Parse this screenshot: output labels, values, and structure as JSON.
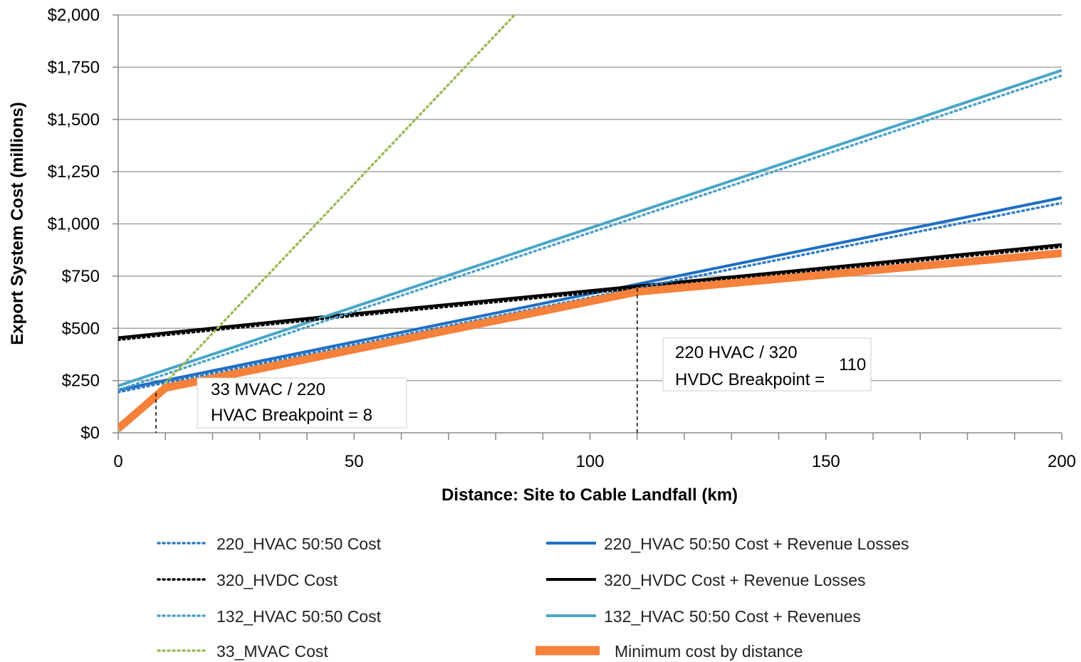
{
  "chart_data": {
    "type": "line",
    "title": "",
    "xlabel": "Distance: Site to Cable Landfall (km)",
    "ylabel": "Export System Cost (millions)",
    "xlim": [
      0,
      200
    ],
    "ylim": [
      0,
      2000
    ],
    "x_ticks": [
      "0",
      "50",
      "100",
      "150",
      "200"
    ],
    "y_ticks": [
      "$0",
      "$250",
      "$500",
      "$750",
      "$1,000",
      "$1,250",
      "$1,500",
      "$1,750",
      "$2,000"
    ],
    "grid": "horizontal",
    "legend_position": "bottom",
    "series": [
      {
        "name": "220_HVAC 50:50 Cost",
        "style": "dotted",
        "color": "#2e7cc4",
        "x": [
          0,
          200
        ],
        "y": [
          195,
          1100
        ]
      },
      {
        "name": "320_HVDC Cost",
        "style": "dotted",
        "color": "#000000",
        "x": [
          0,
          50,
          100,
          150,
          200
        ],
        "y": [
          445,
          560,
          670,
          780,
          890
        ]
      },
      {
        "name": "132_HVAC 50:50 Cost",
        "style": "dotted",
        "color": "#4aa1c8",
        "x": [
          0,
          200
        ],
        "y": [
          205,
          1710
        ]
      },
      {
        "name": "33_MVAC Cost",
        "style": "dotted",
        "color": "#9bbb59",
        "x": [
          0,
          84
        ],
        "y": [
          0,
          2000
        ]
      },
      {
        "name": "220_HVAC 50:50 Cost + Revenue Losses",
        "style": "solid",
        "color": "#1f6fc4",
        "x": [
          0,
          200
        ],
        "y": [
          205,
          1125
        ]
      },
      {
        "name": "320_HVDC Cost + Revenue Losses",
        "style": "solid",
        "color": "#000000",
        "x": [
          0,
          50,
          100,
          150,
          200
        ],
        "y": [
          455,
          570,
          680,
          790,
          900
        ]
      },
      {
        "name": "132_HVAC 50:50 Cost + Revenues",
        "style": "solid",
        "color": "#4ba6c7",
        "x": [
          0,
          200
        ],
        "y": [
          225,
          1735
        ]
      },
      {
        "name": "Minimum cost by distance",
        "style": "thick",
        "color": "#f5813a",
        "x": [
          0,
          10,
          110,
          200
        ],
        "y": [
          20,
          215,
          675,
          860
        ]
      }
    ],
    "annotations": [
      {
        "lines": [
          "33 MVAC / 220",
          "HVAC Breakpoint = 8"
        ],
        "x": 8
      },
      {
        "lines": [
          "220 HVAC / 320",
          "HVDC Breakpoint ="
        ],
        "value": "110",
        "x": 110
      }
    ]
  }
}
